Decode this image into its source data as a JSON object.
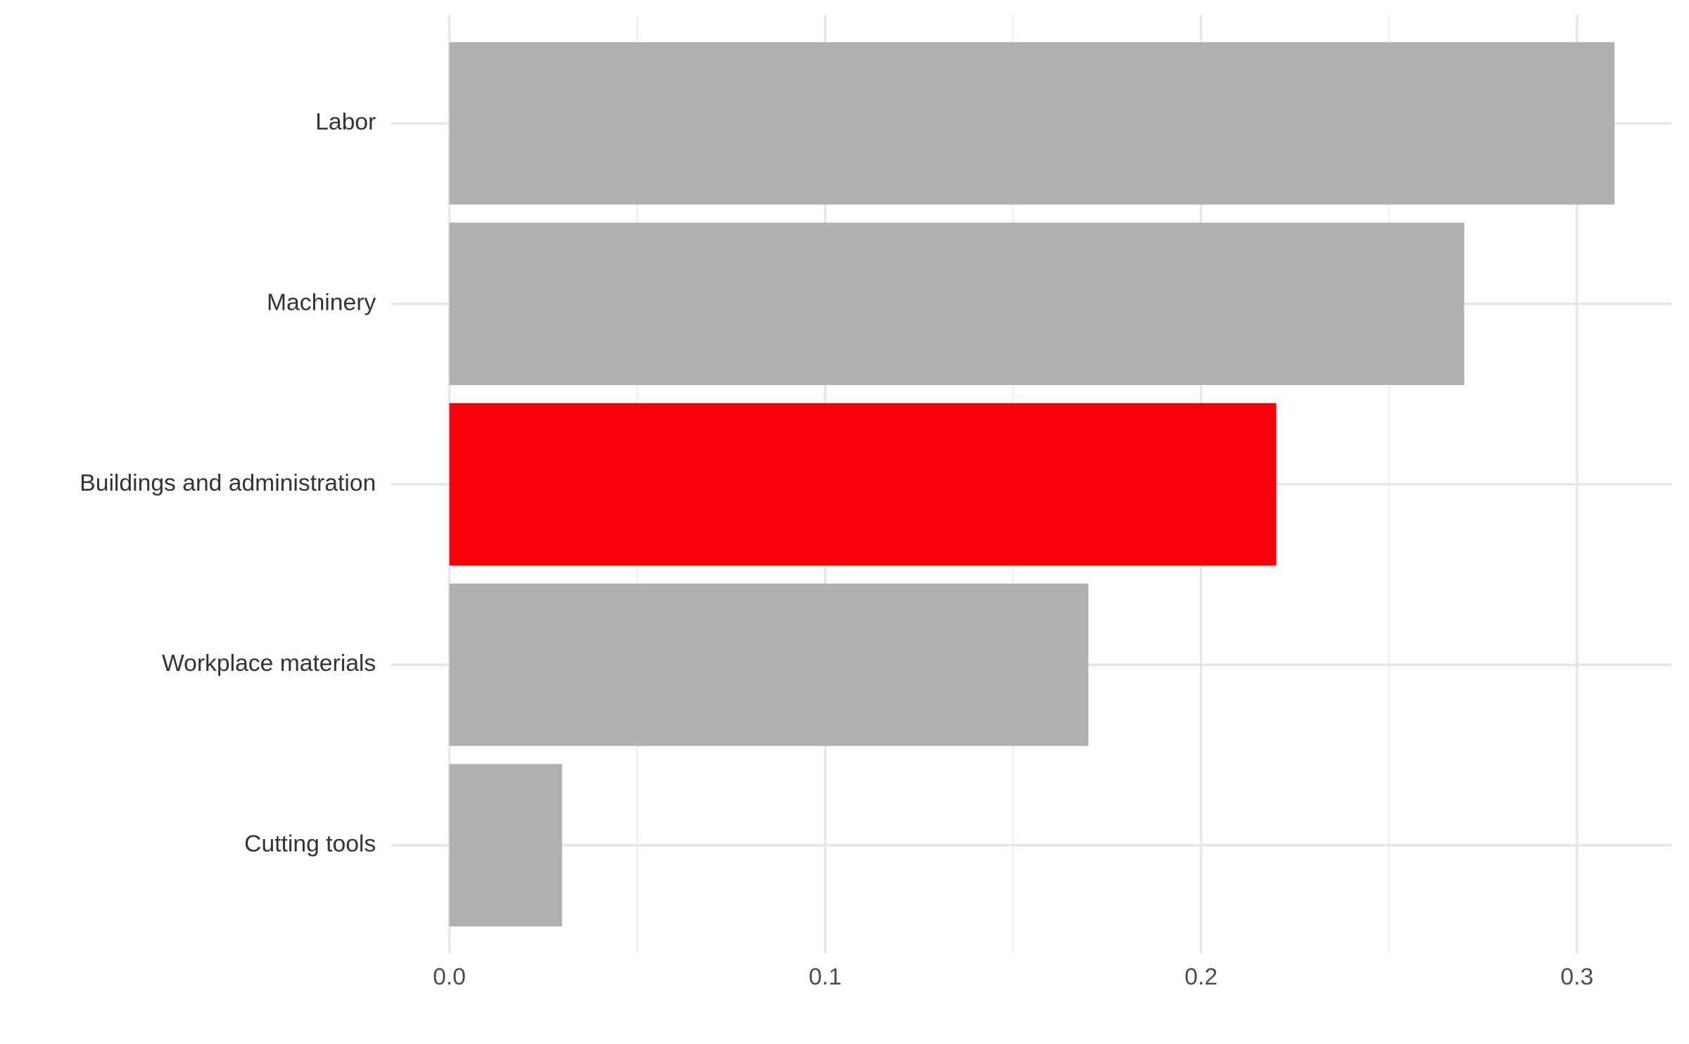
{
  "chart_data": {
    "type": "bar",
    "orientation": "horizontal",
    "categories": [
      "Labor",
      "Machinery",
      "Buildings and administration",
      "Workplace materials",
      "Cutting tools"
    ],
    "values": [
      0.31,
      0.27,
      0.22,
      0.17,
      0.03
    ],
    "colors": [
      "#b0b0b0",
      "#b0b0b0",
      "#fa0007",
      "#b0b0b0",
      "#b0b0b0"
    ],
    "xlim": [
      -0.0155,
      0.3252
    ],
    "xticks": [
      {
        "value": 0,
        "label": "0.0"
      },
      0.1,
      0.2,
      0.3
    ],
    "xminor": [
      0.05,
      0.15,
      0.25
    ],
    "grid": true
  }
}
